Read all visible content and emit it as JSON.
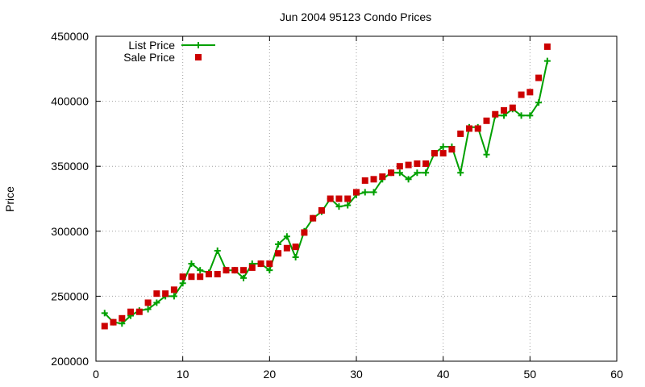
{
  "chart_data": {
    "type": "line",
    "title": "Jun 2004 95123 Condo Prices",
    "xlabel": "",
    "ylabel": "Price",
    "xlim": [
      0,
      60
    ],
    "ylim": [
      200000,
      450000
    ],
    "xticks": [
      "0",
      "10",
      "20",
      "30",
      "40",
      "50",
      "60"
    ],
    "yticks": [
      "200000",
      "250000",
      "300000",
      "350000",
      "400000",
      "450000"
    ],
    "grid": true,
    "legend_position": "top-left",
    "series": [
      {
        "name": "List Price",
        "style": "line-with-plus-markers",
        "color": "#00a000",
        "x": [
          1,
          2,
          3,
          4,
          5,
          6,
          7,
          8,
          9,
          10,
          11,
          12,
          13,
          14,
          15,
          16,
          17,
          18,
          19,
          20,
          21,
          22,
          23,
          24,
          25,
          26,
          27,
          28,
          29,
          30,
          31,
          32,
          33,
          34,
          35,
          36,
          37,
          38,
          39,
          40,
          41,
          42,
          43,
          44,
          45,
          46,
          47,
          48,
          49,
          50,
          51,
          52
        ],
        "values": [
          237000,
          230000,
          229000,
          235000,
          239000,
          240000,
          245000,
          250000,
          250000,
          260000,
          275000,
          270000,
          268000,
          285000,
          270000,
          270000,
          264000,
          275000,
          275000,
          270000,
          290000,
          296000,
          280000,
          300000,
          310000,
          315000,
          325000,
          319000,
          320000,
          328000,
          330000,
          330000,
          340000,
          345000,
          345000,
          340000,
          345000,
          345000,
          360000,
          365000,
          365000,
          345000,
          380000,
          380000,
          359000,
          389000,
          389000,
          394000,
          389000,
          389000,
          399000,
          431000
        ]
      },
      {
        "name": "Sale Price",
        "style": "square-markers",
        "color": "#cc0000",
        "x": [
          1,
          2,
          3,
          4,
          5,
          6,
          7,
          8,
          9,
          10,
          11,
          12,
          13,
          14,
          15,
          16,
          17,
          18,
          19,
          20,
          21,
          22,
          23,
          24,
          25,
          26,
          27,
          28,
          29,
          30,
          31,
          32,
          33,
          34,
          35,
          36,
          37,
          38,
          39,
          40,
          41,
          42,
          43,
          44,
          45,
          46,
          47,
          48,
          49,
          50,
          51,
          52
        ],
        "values": [
          227000,
          230000,
          233000,
          238000,
          238000,
          245000,
          252000,
          252000,
          255000,
          265000,
          265000,
          265000,
          267000,
          267000,
          270000,
          270000,
          270000,
          272000,
          275000,
          275000,
          283000,
          287000,
          288000,
          299000,
          310000,
          316000,
          325000,
          325000,
          325000,
          330000,
          339000,
          340000,
          342000,
          345000,
          350000,
          351000,
          352000,
          352000,
          360000,
          360000,
          363000,
          375000,
          379000,
          379000,
          385000,
          390000,
          393000,
          395000,
          405000,
          407000,
          418000,
          442000
        ]
      }
    ]
  }
}
